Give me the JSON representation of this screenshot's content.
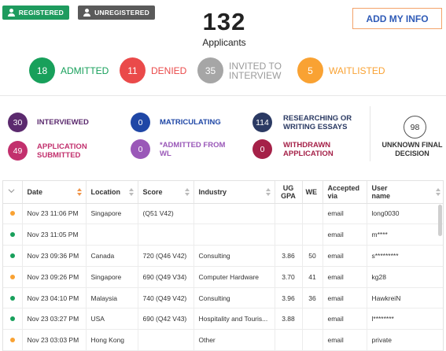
{
  "filters": {
    "registered": "REGISTERED",
    "unregistered": "UNREGISTERED"
  },
  "summary": {
    "count": "132",
    "label": "Applicants"
  },
  "add_info_button": "ADD MY INFO",
  "statuses": [
    {
      "count": "18",
      "label": "ADMITTED",
      "color": "#18a05b"
    },
    {
      "count": "11",
      "label": "DENIED",
      "color": "#ea4a4a"
    },
    {
      "count": "35",
      "label_line1": "INVITED TO",
      "label_line2": "INTERVIEW",
      "color": "#a6a6a6"
    },
    {
      "count": "5",
      "label": "WAITLISTED",
      "color": "#f9a233"
    }
  ],
  "stats": [
    {
      "count": "30",
      "line1": "INTERVIEWED",
      "line2": "",
      "color": "#5b2a6e"
    },
    {
      "count": "0",
      "line1": "MATRICULATING",
      "line2": "",
      "color": "#1f47a6"
    },
    {
      "count": "114",
      "line1": "RESEARCHING OR",
      "line2": "WRITING ESSAYS",
      "color": "#2b3a63"
    },
    {
      "count": "49",
      "line1": "APPLICATION",
      "line2": "SUBMITTED",
      "color": "#c2306d"
    },
    {
      "count": "0",
      "line1": "*ADMITTED FROM",
      "line2": "WL",
      "color": "#9a58b8"
    },
    {
      "count": "0",
      "line1": "WITHDRAWN",
      "line2": "APPLICATION",
      "color": "#a52148"
    }
  ],
  "unknown": {
    "count": "98",
    "line1": "UNKNOWN FINAL",
    "line2": "DECISION"
  },
  "table": {
    "headers": {
      "date": "Date",
      "location": "Location",
      "score": "Score",
      "industry": "Industry",
      "gpa_1": "UG",
      "gpa_2": "GPA",
      "we": "WE",
      "via_1": "Accepted",
      "via_2": "via",
      "user_1": "User",
      "user_2": "name"
    },
    "rows": [
      {
        "dot": "#f9a233",
        "date": "Nov 23 11:06 PM",
        "location": "Singapore",
        "score": "(Q51 V42)",
        "industry": "",
        "gpa": "",
        "we": "",
        "via": "email",
        "user": "long0030"
      },
      {
        "dot": "#18a05b",
        "date": "Nov 23 11:05 PM",
        "location": "",
        "score": "",
        "industry": "",
        "gpa": "",
        "we": "",
        "via": "email",
        "user": "m****"
      },
      {
        "dot": "#18a05b",
        "date": "Nov 23 09:36 PM",
        "location": "Canada",
        "score": "720 (Q46 V42)",
        "industry": "Consulting",
        "gpa": "3.86",
        "we": "50",
        "via": "email",
        "user": "s*********"
      },
      {
        "dot": "#f9a233",
        "date": "Nov 23 09:26 PM",
        "location": "Singapore",
        "score": "690 (Q49 V34)",
        "industry": "Computer Hardware",
        "gpa": "3.70",
        "we": "41",
        "via": "email",
        "user": "kg28"
      },
      {
        "dot": "#18a05b",
        "date": "Nov 23 04:10 PM",
        "location": "Malaysia",
        "score": "740 (Q49 V42)",
        "industry": "Consulting",
        "gpa": "3.96",
        "we": "36",
        "via": "email",
        "user": "HawkreiN"
      },
      {
        "dot": "#18a05b",
        "date": "Nov 23 03:27 PM",
        "location": "USA",
        "score": "690 (Q42 V43)",
        "industry": "Hospitality and Touris...",
        "gpa": "3.88",
        "we": "",
        "via": "email",
        "user": "l********"
      },
      {
        "dot": "#f9a233",
        "date": "Nov 23 03:03 PM",
        "location": "Hong Kong",
        "score": "",
        "industry": "Other",
        "gpa": "",
        "we": "",
        "via": "email",
        "user": "private"
      }
    ]
  }
}
